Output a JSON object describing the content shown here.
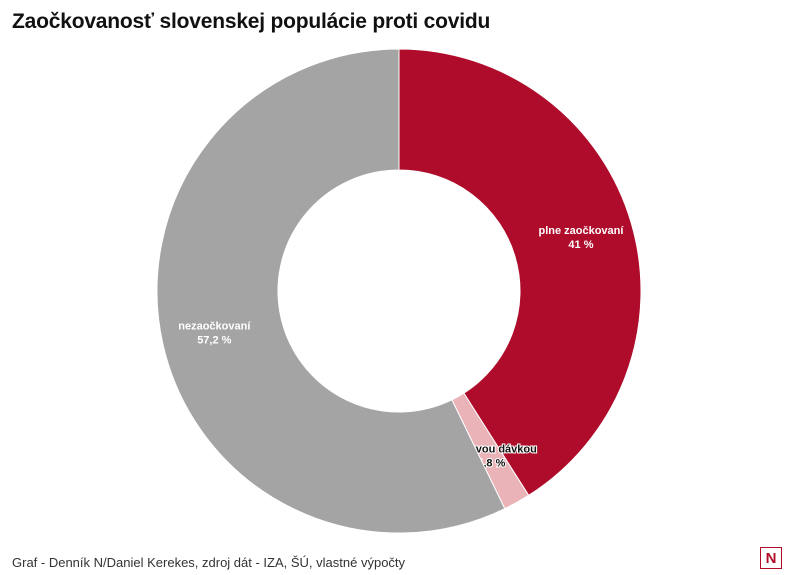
{
  "title": "Zaočkovanosť slovenskej populácie proti covidu",
  "footer": "Graf - Denník N/Daniel Kerekes, zdroj dát - IZA, ŠÚ, vlastné výpočty",
  "logo": {
    "letter": "N",
    "icon": "dennik-n-logo-icon",
    "color": "#b00c28"
  },
  "chart_data": {
    "type": "pie",
    "variant": "donut",
    "slices": [
      {
        "label": "plne zaočkovaní",
        "value": 41,
        "value_label": "41 %",
        "color": "#ae0c2a",
        "label_style": "light"
      },
      {
        "label": "len prvou dávkou",
        "value": 1.8,
        "value_label": "1,8 %",
        "color": "#eab3b8",
        "label_style": "dark"
      },
      {
        "label": "nezaočkovaní",
        "value": 57.2,
        "value_label": "57,2 %",
        "color": "#a4a4a4",
        "label_style": "light"
      }
    ]
  }
}
